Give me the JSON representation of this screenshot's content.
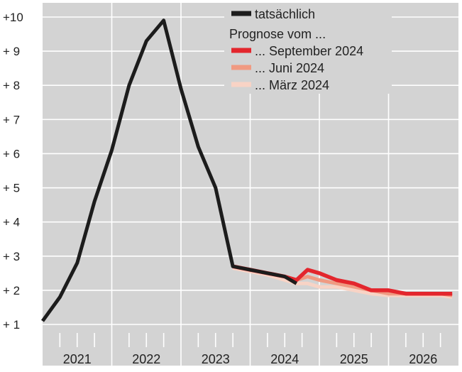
{
  "chart_data": {
    "type": "line",
    "title": "",
    "xlabel": "",
    "ylabel": "",
    "y_ticks": [
      {
        "value": 10,
        "label": "+10"
      },
      {
        "value": 9,
        "label": "+ 9"
      },
      {
        "value": 8,
        "label": "+ 8"
      },
      {
        "value": 7,
        "label": "+ 7"
      },
      {
        "value": 6,
        "label": "+ 6"
      },
      {
        "value": 5,
        "label": "+ 5"
      },
      {
        "value": 4,
        "label": "+ 4"
      },
      {
        "value": 3,
        "label": "+ 3"
      },
      {
        "value": 2,
        "label": "+ 2"
      },
      {
        "value": 1,
        "label": "+ 1"
      }
    ],
    "ylim": [
      0.9,
      10.2
    ],
    "x_years": [
      "2021",
      "2022",
      "2023",
      "2024",
      "2025",
      "2026"
    ],
    "xlim": [
      2021.0,
      2027.0
    ],
    "grid": true,
    "legend": {
      "position": "top-right",
      "heading": "Prognose vom ...",
      "entries": [
        "tatsächlich",
        "... September 2024",
        "... Juni 2024",
        "... März 2024"
      ]
    },
    "colors": {
      "background": "#d3d3d3",
      "grid": "#ffffff",
      "tatsaechlich": "#1c1c1c",
      "september": "#e3262d",
      "juni": "#f09a82",
      "maerz": "#f8d3c5"
    },
    "series": [
      {
        "name": "tatsächlich",
        "x": [
          2021.0,
          2021.25,
          2021.5,
          2021.75,
          2022.0,
          2022.25,
          2022.5,
          2022.75,
          2023.0,
          2023.25,
          2023.5,
          2023.75,
          2024.0,
          2024.25,
          2024.5,
          2024.67
        ],
        "y": [
          1.1,
          1.8,
          2.8,
          4.6,
          6.1,
          8.0,
          9.3,
          9.9,
          7.9,
          6.2,
          5.0,
          2.7,
          2.6,
          2.5,
          2.4,
          2.2
        ]
      },
      {
        "name": "... September 2024",
        "x": [
          2023.75,
          2024.0,
          2024.25,
          2024.5,
          2024.67,
          2024.83,
          2025.0,
          2025.25,
          2025.5,
          2025.75,
          2026.0,
          2026.25,
          2026.5,
          2026.75,
          2026.92
        ],
        "y": [
          2.7,
          2.6,
          2.5,
          2.4,
          2.3,
          2.6,
          2.5,
          2.3,
          2.2,
          2.0,
          2.0,
          1.9,
          1.9,
          1.9,
          1.9
        ]
      },
      {
        "name": "... Juni 2024",
        "x": [
          2023.75,
          2024.0,
          2024.25,
          2024.5,
          2024.67,
          2024.83,
          2025.0,
          2025.25,
          2025.5,
          2025.75,
          2026.0,
          2026.25,
          2026.5,
          2026.75,
          2026.92
        ],
        "y": [
          2.7,
          2.6,
          2.5,
          2.4,
          2.3,
          2.4,
          2.3,
          2.2,
          2.1,
          2.0,
          1.9,
          1.9,
          1.9,
          1.9,
          1.85
        ]
      },
      {
        "name": "... März 2024",
        "x": [
          2023.75,
          2024.0,
          2024.25,
          2024.5,
          2024.67,
          2024.83,
          2025.0,
          2025.25,
          2025.5,
          2025.75,
          2026.0,
          2026.25,
          2026.5,
          2026.75,
          2026.92
        ],
        "y": [
          2.65,
          2.55,
          2.45,
          2.3,
          2.2,
          2.2,
          2.1,
          2.1,
          2.0,
          1.9,
          1.85,
          1.85,
          1.85,
          1.85,
          1.8
        ]
      }
    ]
  }
}
